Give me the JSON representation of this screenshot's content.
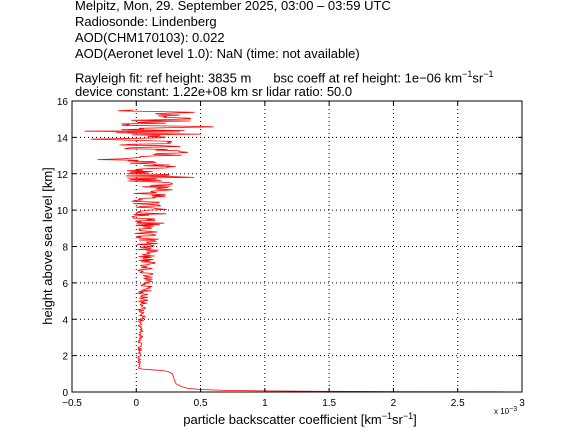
{
  "header": {
    "line1": "Melpitz, Mon, 29. September 2025, 03:00 – 03:59 UTC",
    "line2": "Radiosonde: Lindenberg",
    "line3": "AOD(CHM170103): 0.022",
    "line4": "AOD(Aeronet level 1.0): NaN   (time: not available)",
    "line5_left": "Rayleigh fit:     ref height: 3835 m",
    "line5_right": "bsc coeff at ref height: 1e−06 km",
    "line6": "device constant: 1.22e+08 km sr     lidar ratio: 50.0"
  },
  "chart_data": {
    "type": "line",
    "xlabel": "particle backscatter coefficient [km",
    "xlabel_unit_sup1": "−1",
    "xlabel_unit_mid": "sr",
    "xlabel_unit_sup2": "−1",
    "xlabel_unit_end": "]",
    "x_multiplier_base": "x 10",
    "x_multiplier_exp": "−3",
    "ylabel": "height above sea level [km]",
    "xlim": [
      -0.5,
      3
    ],
    "ylim": [
      0,
      16
    ],
    "xticks": [
      "−0.5",
      "0",
      "0.5",
      "1",
      "1.5",
      "2",
      "2.5",
      "3"
    ],
    "xtick_values": [
      -0.5,
      0,
      0.5,
      1,
      1.5,
      2,
      2.5,
      3
    ],
    "yticks": [
      "0",
      "2",
      "4",
      "6",
      "8",
      "10",
      "12",
      "14",
      "16"
    ],
    "ytick_values": [
      0,
      2,
      4,
      6,
      8,
      10,
      12,
      14,
      16
    ],
    "grid": true,
    "series_color": "#ff0000",
    "profile": {
      "low_points": [
        [
          3.0,
          0.0
        ],
        [
          2.8,
          0.01
        ],
        [
          2.0,
          0.02
        ],
        [
          1.4,
          0.04
        ],
        [
          1.0,
          0.06
        ],
        [
          0.7,
          0.09
        ],
        [
          0.5,
          0.14
        ],
        [
          0.4,
          0.2
        ],
        [
          0.35,
          0.3
        ],
        [
          0.31,
          0.45
        ],
        [
          0.3,
          0.6
        ],
        [
          0.29,
          0.8
        ],
        [
          0.28,
          1.0
        ],
        [
          0.25,
          1.12
        ],
        [
          0.2,
          1.18
        ],
        [
          0.12,
          1.22
        ],
        [
          0.05,
          1.26
        ],
        [
          0.02,
          1.3
        ]
      ],
      "noisy_segments": [
        {
          "from": 1.3,
          "to": 4.0,
          "center_start": 0.02,
          "center_end": 0.04,
          "amp_start": 0.008,
          "amp_end": 0.03
        },
        {
          "from": 4.0,
          "to": 6.0,
          "center_start": 0.04,
          "center_end": 0.07,
          "amp_start": 0.03,
          "amp_end": 0.06
        },
        {
          "from": 6.0,
          "to": 8.0,
          "center_start": 0.07,
          "center_end": 0.09,
          "amp_start": 0.06,
          "amp_end": 0.09
        },
        {
          "from": 8.0,
          "to": 10.0,
          "center_start": 0.09,
          "center_end": 0.1,
          "amp_start": 0.09,
          "amp_end": 0.14
        },
        {
          "from": 10.0,
          "to": 12.5,
          "center_start": 0.1,
          "center_end": 0.12,
          "amp_start": 0.14,
          "amp_end": 0.22
        },
        {
          "from": 12.5,
          "to": 15.5,
          "center_start": 0.12,
          "center_end": 0.12,
          "amp_start": 0.22,
          "amp_end": 0.33
        }
      ],
      "spikes": [
        [
          0.5,
          14.18
        ],
        [
          -0.4,
          14.35
        ],
        [
          0.6,
          14.6
        ],
        [
          0.45,
          15.4
        ],
        [
          -0.35,
          13.9
        ],
        [
          0.45,
          11.8
        ],
        [
          0.4,
          13.2
        ],
        [
          -0.3,
          12.8
        ]
      ]
    }
  }
}
